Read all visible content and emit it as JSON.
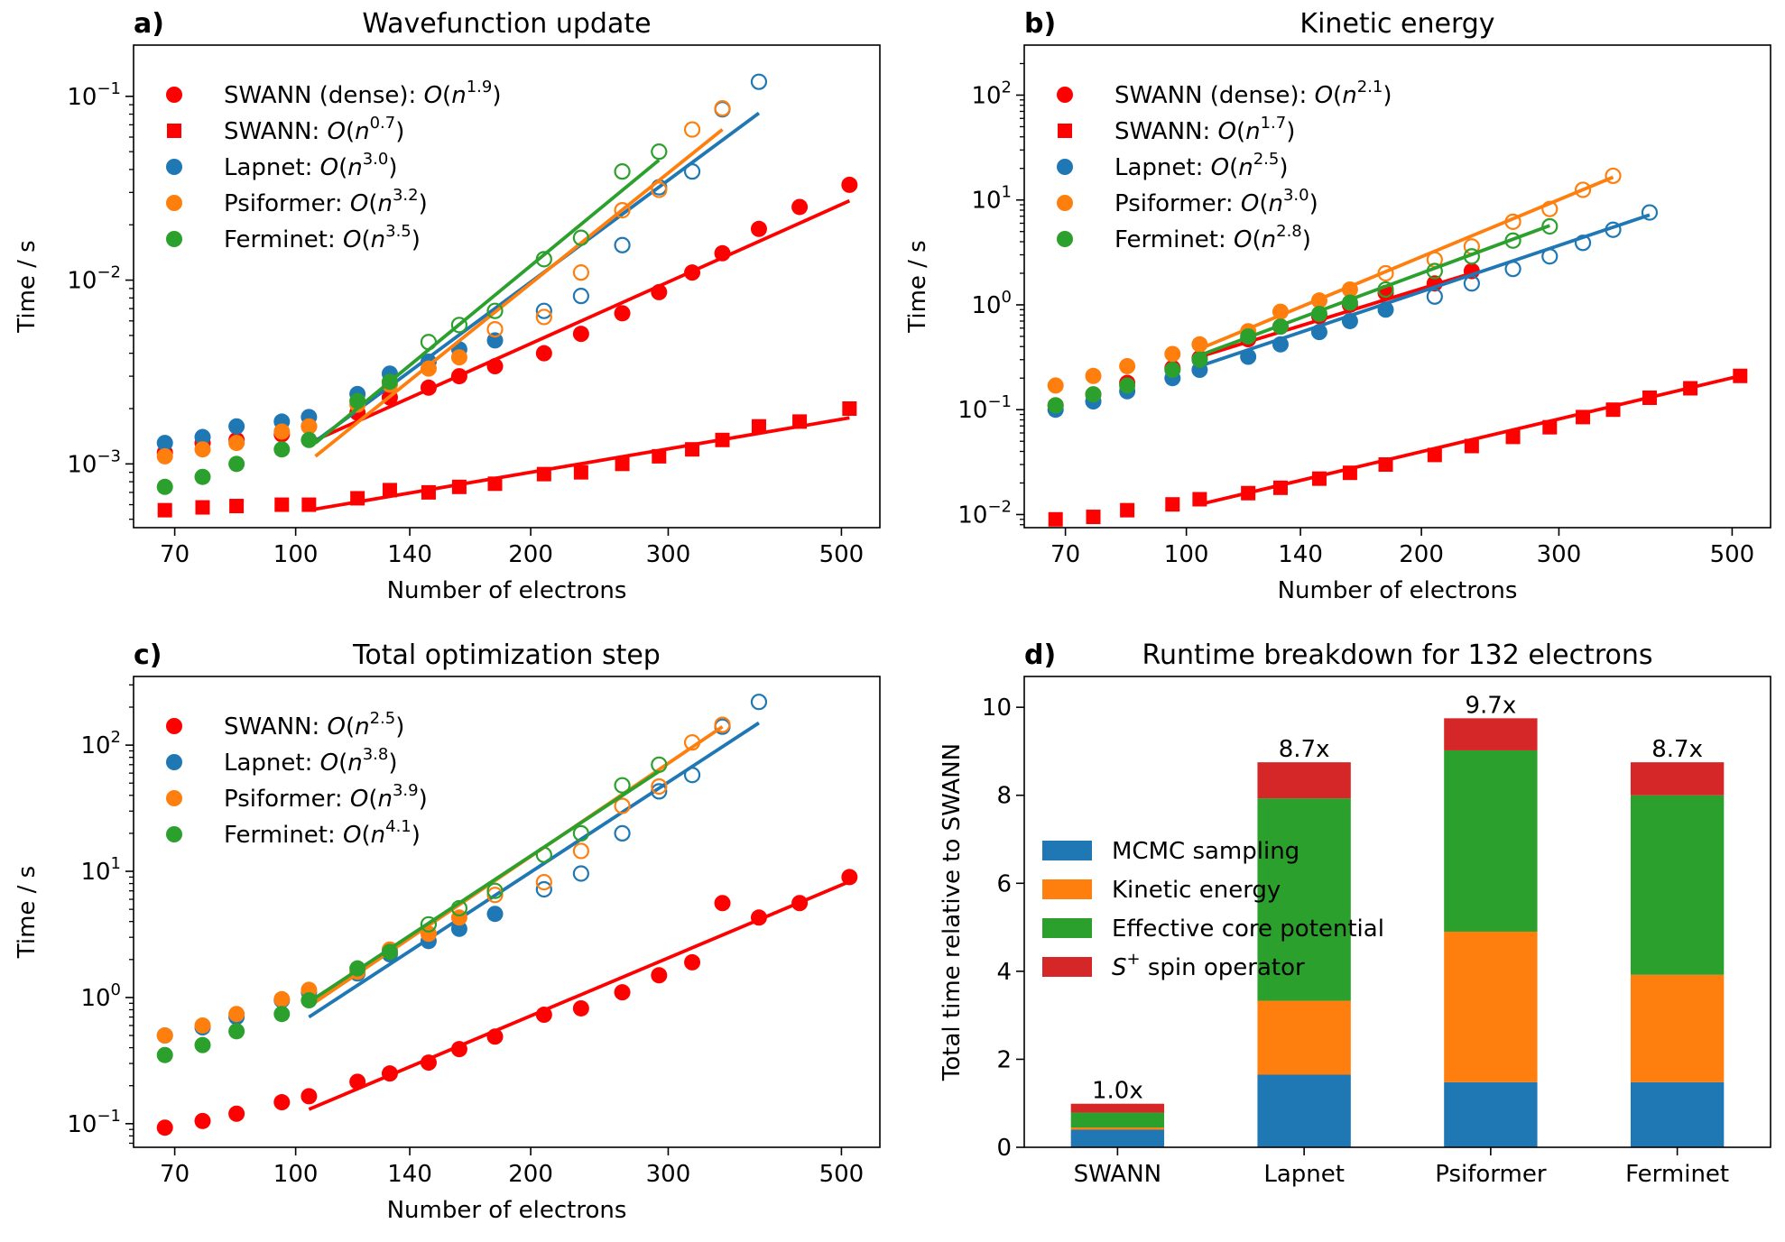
{
  "colors": {
    "swann": "#ff0000",
    "lapnet": "#1f77b4",
    "psiformer": "#ff7f0e",
    "ferminet": "#2ca02c",
    "spin": "#d62728"
  },
  "chart_data": [
    {
      "panel_label": "a)",
      "title": "Wavefunction update",
      "type": "scatter",
      "xscale": "log",
      "yscale": "log",
      "xlabel": "Number of electrons",
      "ylabel": "Time / s",
      "xlim": [
        62,
        560
      ],
      "ylim": [
        0.00045,
        0.19
      ],
      "xticks": [
        70,
        100,
        140,
        200,
        300,
        500
      ],
      "yticks": [
        {
          "value": 0.001,
          "label": "10",
          "exp": "−3"
        },
        {
          "value": 0.01,
          "label": "10",
          "exp": "−2"
        },
        {
          "value": 0.1,
          "label": "10",
          "exp": "−1"
        }
      ],
      "legend_loc": "upper-left",
      "series": [
        {
          "name": "SWANN (dense): ",
          "big_o": "O(n",
          "exp": "1.9",
          "close": ")",
          "color": "#ff0000",
          "marker": "circle",
          "filled": true,
          "x": [
            68,
            76,
            84,
            96,
            104,
            120,
            132,
            148,
            162,
            180,
            208,
            232,
            262,
            292,
            322,
            352,
            392,
            442,
            512
          ],
          "y": [
            0.00115,
            0.0013,
            0.00135,
            0.00145,
            0.0016,
            0.0019,
            0.0023,
            0.0026,
            0.003,
            0.0034,
            0.004,
            0.0051,
            0.0066,
            0.0086,
            0.011,
            0.014,
            0.019,
            0.025,
            0.033
          ],
          "fit": {
            "x": [
              104,
              512
            ],
            "y": [
              0.0013,
              0.027
            ]
          }
        },
        {
          "name": "SWANN: ",
          "big_o": "O(n",
          "exp": "0.7",
          "close": ")",
          "color": "#ff0000",
          "marker": "square",
          "filled": true,
          "x": [
            68,
            76,
            84,
            96,
            104,
            120,
            132,
            148,
            162,
            180,
            208,
            232,
            262,
            292,
            322,
            352,
            392,
            442,
            512
          ],
          "y": [
            0.00056,
            0.00058,
            0.00059,
            0.0006,
            0.0006,
            0.00065,
            0.00072,
            0.0007,
            0.00075,
            0.00078,
            0.00088,
            0.0009,
            0.001,
            0.0011,
            0.0012,
            0.00135,
            0.0016,
            0.0017,
            0.002
          ],
          "fit": {
            "x": [
              104,
              512
            ],
            "y": [
              0.00056,
              0.00178
            ]
          }
        },
        {
          "name": "Lapnet: ",
          "big_o": "O(n",
          "exp": "3.0",
          "close": ")",
          "color": "#1f77b4",
          "marker": "circle",
          "filled": true,
          "x": [
            68,
            76,
            84,
            96,
            104,
            120,
            132,
            148,
            162,
            180
          ],
          "y": [
            0.0013,
            0.0014,
            0.0016,
            0.0017,
            0.0018,
            0.0024,
            0.0031,
            0.0036,
            0.0042,
            0.0047
          ],
          "x_open": [
            208,
            232,
            262,
            292,
            322,
            352,
            392
          ],
          "y_open": [
            0.0068,
            0.0082,
            0.0155,
            0.032,
            0.039,
            0.085,
            0.12
          ],
          "fit": {
            "x": [
              104,
              392
            ],
            "y": [
              0.00125,
              0.081
            ]
          }
        },
        {
          "name": "Psiformer: ",
          "big_o": "O(n",
          "exp": "3.2",
          "close": ")",
          "color": "#ff7f0e",
          "marker": "circle",
          "filled": true,
          "x": [
            68,
            76,
            84,
            96,
            104,
            120,
            132,
            148,
            162
          ],
          "y": [
            0.0011,
            0.0012,
            0.0013,
            0.0015,
            0.0016,
            0.0021,
            0.0027,
            0.0033,
            0.0038
          ],
          "x_open": [
            180,
            208,
            232,
            262,
            292,
            322,
            352
          ],
          "y_open": [
            0.0054,
            0.0063,
            0.011,
            0.024,
            0.031,
            0.066,
            0.086
          ],
          "fit": {
            "x": [
              106,
              352
            ],
            "y": [
              0.0011,
              0.066
            ]
          }
        },
        {
          "name": "Ferminet: ",
          "big_o": "O(n",
          "exp": "3.5",
          "close": ")",
          "color": "#2ca02c",
          "marker": "circle",
          "filled": true,
          "x": [
            68,
            76,
            84,
            96,
            104,
            120,
            132
          ],
          "y": [
            0.00075,
            0.00085,
            0.001,
            0.0012,
            0.00135,
            0.0022,
            0.0028
          ],
          "x_open": [
            148,
            162,
            180,
            208,
            232,
            262,
            292
          ],
          "y_open": [
            0.0046,
            0.0057,
            0.0068,
            0.013,
            0.017,
            0.039,
            0.05
          ],
          "fit": {
            "x": [
              106,
              292
            ],
            "y": [
              0.0013,
              0.045
            ]
          }
        }
      ]
    },
    {
      "panel_label": "b)",
      "title": "Kinetic energy",
      "type": "scatter",
      "xscale": "log",
      "yscale": "log",
      "xlabel": "Number of electrons",
      "ylabel": "Time / s",
      "xlim": [
        62,
        560
      ],
      "ylim": [
        0.0075,
        300
      ],
      "xticks": [
        70,
        100,
        140,
        200,
        300,
        500
      ],
      "yticks": [
        {
          "value": 0.01,
          "label": "10",
          "exp": "−2"
        },
        {
          "value": 0.1,
          "label": "10",
          "exp": "−1"
        },
        {
          "value": 1,
          "label": "10",
          "exp": "0"
        },
        {
          "value": 10,
          "label": "10",
          "exp": "1"
        },
        {
          "value": 100,
          "label": "10",
          "exp": "2"
        }
      ],
      "legend_loc": "upper-left",
      "series": [
        {
          "name": "SWANN (dense): ",
          "big_o": "O(n",
          "exp": "2.1",
          "close": ")",
          "color": "#ff0000",
          "marker": "circle",
          "filled": true,
          "x": [
            68,
            76,
            84,
            96,
            104,
            120,
            132,
            148,
            162,
            180,
            208,
            232
          ],
          "y": [
            0.11,
            0.14,
            0.18,
            0.25,
            0.31,
            0.47,
            0.62,
            0.78,
            1.0,
            1.3,
            1.6,
            2.1
          ],
          "fit": {
            "x": [
              104,
              232
            ],
            "y": [
              0.32,
              2.0
            ]
          }
        },
        {
          "name": "SWANN: ",
          "big_o": "O(n",
          "exp": "1.7",
          "close": ")",
          "color": "#ff0000",
          "marker": "square",
          "filled": true,
          "x": [
            68,
            76,
            84,
            96,
            104,
            120,
            132,
            148,
            162,
            180,
            208,
            232,
            262,
            292,
            322,
            352,
            392,
            442,
            512
          ],
          "y": [
            0.009,
            0.0095,
            0.011,
            0.0125,
            0.014,
            0.016,
            0.018,
            0.022,
            0.025,
            0.03,
            0.037,
            0.045,
            0.055,
            0.068,
            0.085,
            0.1,
            0.13,
            0.16,
            0.21
          ],
          "fit": {
            "x": [
              104,
              512
            ],
            "y": [
              0.0125,
              0.21
            ]
          }
        },
        {
          "name": "Lapnet: ",
          "big_o": "O(n",
          "exp": "2.5",
          "close": ")",
          "color": "#1f77b4",
          "marker": "circle",
          "filled": true,
          "x": [
            68,
            76,
            84,
            96,
            104,
            120,
            132,
            148,
            162,
            180
          ],
          "y": [
            0.1,
            0.12,
            0.15,
            0.2,
            0.24,
            0.32,
            0.42,
            0.55,
            0.7,
            0.9
          ],
          "x_open": [
            208,
            232,
            262,
            292,
            322,
            352,
            392
          ],
          "y_open": [
            1.2,
            1.6,
            2.2,
            2.9,
            3.9,
            5.2,
            7.6
          ],
          "fit": {
            "x": [
              104,
              392
            ],
            "y": [
              0.26,
              7.2
            ]
          }
        },
        {
          "name": "Psiformer: ",
          "big_o": "O(n",
          "exp": "3.0",
          "close": ")",
          "color": "#ff7f0e",
          "marker": "circle",
          "filled": true,
          "x": [
            68,
            76,
            84,
            96,
            104,
            120,
            132,
            148,
            162
          ],
          "y": [
            0.17,
            0.21,
            0.26,
            0.34,
            0.42,
            0.56,
            0.86,
            1.1,
            1.4
          ],
          "x_open": [
            180,
            208,
            232,
            262,
            292,
            322,
            352
          ],
          "y_open": [
            2.0,
            2.7,
            3.6,
            6.2,
            8.2,
            12.5,
            17
          ],
          "fit": {
            "x": [
              104,
              352
            ],
            "y": [
              0.38,
              16.5
            ]
          }
        },
        {
          "name": "Ferminet: ",
          "big_o": "O(n",
          "exp": "2.8",
          "close": ")",
          "color": "#2ca02c",
          "marker": "circle",
          "filled": true,
          "x": [
            68,
            76,
            84,
            96,
            104,
            120,
            132,
            148,
            162
          ],
          "y": [
            0.11,
            0.14,
            0.17,
            0.24,
            0.3,
            0.5,
            0.62,
            0.82,
            1.05
          ],
          "x_open": [
            180,
            208,
            232,
            262,
            292
          ],
          "y_open": [
            1.4,
            2.1,
            2.9,
            4.1,
            5.6
          ],
          "fit": {
            "x": [
              104,
              292
            ],
            "y": [
              0.33,
              5.7
            ]
          }
        }
      ]
    },
    {
      "panel_label": "c)",
      "title": "Total optimization step",
      "type": "scatter",
      "xscale": "log",
      "yscale": "log",
      "xlabel": "Number of electrons",
      "ylabel": "Time / s",
      "xlim": [
        62,
        560
      ],
      "ylim": [
        0.065,
        350
      ],
      "xticks": [
        70,
        100,
        140,
        200,
        300,
        500
      ],
      "yticks": [
        {
          "value": 0.1,
          "label": "10",
          "exp": "−1"
        },
        {
          "value": 1,
          "label": "10",
          "exp": "0"
        },
        {
          "value": 10,
          "label": "10",
          "exp": "1"
        },
        {
          "value": 100,
          "label": "10",
          "exp": "2"
        }
      ],
      "legend_loc": "upper-left",
      "series": [
        {
          "name": "SWANN: ",
          "big_o": "O(n",
          "exp": "2.5",
          "close": ")",
          "color": "#ff0000",
          "marker": "circle",
          "filled": true,
          "x": [
            68,
            76,
            84,
            96,
            104,
            120,
            132,
            148,
            162,
            180,
            208,
            232,
            262,
            292,
            322,
            352,
            392,
            442,
            512
          ],
          "y": [
            0.093,
            0.105,
            0.12,
            0.148,
            0.165,
            0.215,
            0.25,
            0.305,
            0.39,
            0.49,
            0.73,
            0.82,
            1.1,
            1.5,
            1.9,
            5.6,
            4.3,
            5.6,
            9.0
          ],
          "fit": {
            "x": [
              104,
              512
            ],
            "y": [
              0.13,
              8.3
            ]
          }
        },
        {
          "name": "Lapnet: ",
          "big_o": "O(n",
          "exp": "3.8",
          "close": ")",
          "color": "#1f77b4",
          "marker": "circle",
          "filled": true,
          "x": [
            68,
            76,
            84,
            96,
            104,
            120,
            132,
            148,
            162,
            180
          ],
          "y": [
            0.5,
            0.58,
            0.7,
            0.95,
            1.1,
            1.55,
            2.2,
            2.8,
            3.5,
            4.6
          ],
          "x_open": [
            208,
            232,
            262,
            292,
            322,
            352,
            392
          ],
          "y_open": [
            7.2,
            9.6,
            20,
            43,
            58,
            140,
            220
          ],
          "fit": {
            "x": [
              104,
              392
            ],
            "y": [
              0.7,
              150
            ]
          }
        },
        {
          "name": "Psiformer: ",
          "big_o": "O(n",
          "exp": "3.9",
          "close": ")",
          "color": "#ff7f0e",
          "marker": "circle",
          "filled": true,
          "x": [
            68,
            76,
            84,
            96,
            104,
            120,
            132,
            148,
            162
          ],
          "y": [
            0.5,
            0.6,
            0.74,
            0.97,
            1.15,
            1.6,
            2.4,
            3.2,
            4.3
          ],
          "x_open": [
            180,
            208,
            232,
            262,
            292,
            322,
            352
          ],
          "y_open": [
            6.5,
            8.2,
            14.5,
            33,
            47,
            105,
            145
          ],
          "fit": {
            "x": [
              104,
              352
            ],
            "y": [
              0.85,
              140
            ]
          }
        },
        {
          "name": "Ferminet: ",
          "big_o": "O(n",
          "exp": "4.1",
          "close": ")",
          "color": "#2ca02c",
          "marker": "circle",
          "filled": true,
          "x": [
            68,
            76,
            84,
            96,
            104,
            120,
            132
          ],
          "y": [
            0.35,
            0.42,
            0.54,
            0.74,
            0.95,
            1.7,
            2.3
          ],
          "x_open": [
            148,
            162,
            180,
            208,
            232,
            262,
            292
          ],
          "y_open": [
            3.8,
            5.1,
            7.0,
            13.5,
            20,
            48,
            70
          ],
          "fit": {
            "x": [
              104,
              292
            ],
            "y": [
              0.92,
              62
            ]
          }
        }
      ]
    },
    {
      "panel_label": "d)",
      "title": "Runtime breakdown for 132 electrons",
      "type": "bar",
      "stacked": true,
      "ylabel": "Total time relative to SWANN",
      "ylim": [
        0,
        10.7
      ],
      "yticks": [
        0,
        2,
        4,
        6,
        8,
        10
      ],
      "categories": [
        "SWANN",
        "Lapnet",
        "Psiformer",
        "Ferminet"
      ],
      "totals_labels": [
        "1.0x",
        "8.7x",
        "9.7x",
        "8.7x"
      ],
      "legend_loc": "center-left",
      "series": [
        {
          "name": "MCMC sampling",
          "color": "#1f77b4",
          "values": [
            0.4,
            1.65,
            1.48,
            1.48
          ]
        },
        {
          "name": "Kinetic energy",
          "color": "#ff7f0e",
          "values": [
            0.05,
            1.68,
            3.42,
            2.44
          ]
        },
        {
          "name": "Effective core potential",
          "color": "#2ca02c",
          "values": [
            0.34,
            4.6,
            4.12,
            4.08
          ]
        },
        {
          "name": "S",
          "name_sup": "+",
          "name_rest": " spin operator",
          "color": "#d62728",
          "values": [
            0.2,
            0.82,
            0.73,
            0.75
          ]
        }
      ]
    }
  ]
}
